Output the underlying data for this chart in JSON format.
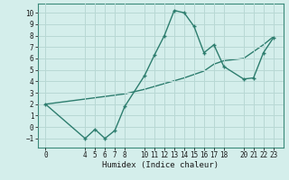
{
  "line1_x": [
    0,
    4,
    5,
    6,
    7,
    8,
    10,
    11,
    12,
    13,
    14,
    15,
    16,
    17,
    18,
    20,
    21,
    22,
    23
  ],
  "line1_y": [
    2.0,
    -1.0,
    -0.2,
    -1.0,
    -0.3,
    1.8,
    4.5,
    6.3,
    8.0,
    10.2,
    10.0,
    8.8,
    6.5,
    7.2,
    5.3,
    4.2,
    4.3,
    6.5,
    7.8
  ],
  "line2_x": [
    0,
    8,
    10,
    12,
    14,
    16,
    17,
    18,
    20,
    21,
    22,
    23
  ],
  "line2_y": [
    2.0,
    2.9,
    3.3,
    3.8,
    4.3,
    4.9,
    5.5,
    5.8,
    6.0,
    6.6,
    7.2,
    7.9
  ],
  "color": "#2d7d6e",
  "bg_color": "#d4eeeb",
  "grid_color": "#b8d8d4",
  "xlabel": "Humidex (Indice chaleur)",
  "xticks": [
    0,
    4,
    5,
    6,
    7,
    8,
    10,
    11,
    12,
    13,
    14,
    15,
    16,
    17,
    18,
    20,
    21,
    22,
    23
  ],
  "yticks": [
    -1,
    0,
    1,
    2,
    3,
    4,
    5,
    6,
    7,
    8,
    9,
    10
  ],
  "ylim": [
    -1.8,
    10.8
  ],
  "xlim": [
    -0.8,
    24.0
  ],
  "markersize": 3.5,
  "linewidth": 1.0
}
